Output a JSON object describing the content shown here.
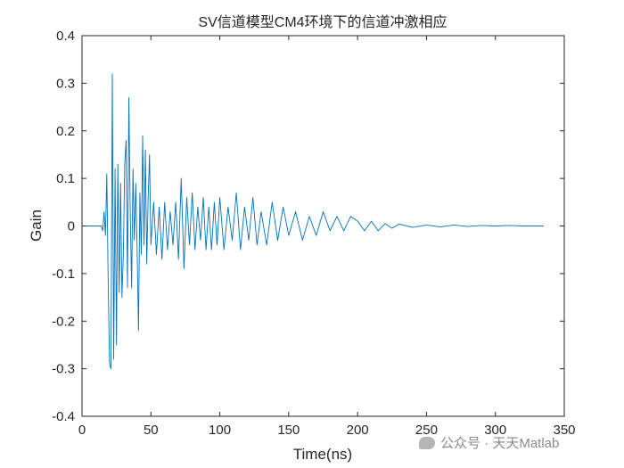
{
  "chart_data": {
    "type": "line",
    "title": "SV信道模型CM4环境下的信道冲激相应",
    "xlabel": "Time(ns)",
    "ylabel": "Gain",
    "xlim": [
      0,
      350
    ],
    "ylim": [
      -0.4,
      0.4
    ],
    "xticks": [
      "0",
      "50",
      "100",
      "150",
      "200",
      "250",
      "300",
      "350"
    ],
    "yticks": [
      "0.4",
      "0.3",
      "0.2",
      "0.1",
      "0",
      "-0.1",
      "-0.2",
      "-0.3",
      "-0.4"
    ],
    "grid": false,
    "line_color": "#0072BD",
    "x": [
      0,
      14,
      15,
      16,
      17,
      18,
      19,
      20,
      21,
      22,
      23,
      24,
      25,
      26,
      27,
      28,
      29,
      30,
      31,
      32,
      33,
      34,
      35,
      36,
      37,
      38,
      39,
      40,
      41,
      42,
      43,
      44,
      45,
      46,
      47,
      48,
      49,
      50,
      52,
      54,
      56,
      58,
      60,
      62,
      64,
      66,
      68,
      70,
      72,
      74,
      76,
      78,
      80,
      82,
      84,
      86,
      88,
      90,
      92,
      94,
      96,
      98,
      100,
      103,
      106,
      109,
      112,
      115,
      118,
      121,
      124,
      127,
      130,
      134,
      138,
      142,
      146,
      150,
      155,
      160,
      165,
      170,
      175,
      180,
      185,
      190,
      195,
      200,
      205,
      210,
      215,
      220,
      225,
      230,
      240,
      250,
      260,
      270,
      280,
      290,
      300,
      310,
      320,
      335
    ],
    "y": [
      0,
      0,
      -0.01,
      0.03,
      -0.02,
      0.11,
      -0.12,
      -0.29,
      -0.3,
      0.32,
      -0.28,
      0.12,
      -0.25,
      0.13,
      -0.14,
      0.09,
      -0.15,
      -0.06,
      0.13,
      0.18,
      -0.13,
      0.27,
      0.03,
      -0.13,
      0.12,
      -0.03,
      0.09,
      -0.05,
      -0.22,
      0.07,
      -0.06,
      0.19,
      -0.04,
      0.16,
      -0.08,
      0.06,
      0.15,
      -0.04,
      0.05,
      -0.06,
      0.04,
      -0.07,
      0.05,
      -0.05,
      0.03,
      -0.04,
      0.05,
      -0.07,
      0.1,
      -0.09,
      0.06,
      -0.04,
      0.07,
      -0.05,
      0.04,
      -0.03,
      0.06,
      -0.05,
      0.04,
      -0.05,
      0.05,
      -0.04,
      0.06,
      -0.05,
      0.04,
      -0.03,
      0.07,
      -0.05,
      0.04,
      -0.03,
      0.06,
      -0.04,
      0.03,
      -0.04,
      0.05,
      -0.03,
      0.04,
      -0.02,
      0.03,
      -0.03,
      0.02,
      -0.02,
      0.03,
      -0.01,
      0.02,
      -0.01,
      0.02,
      0.01,
      -0.01,
      0.01,
      -0.01,
      0.005,
      -0.005,
      0.004,
      -0.003,
      0.002,
      -0.002,
      0.002,
      -0.001,
      0.001,
      0,
      0.001,
      0,
      0
    ]
  },
  "watermark": {
    "text": "公众号 · 天天Matlab"
  }
}
